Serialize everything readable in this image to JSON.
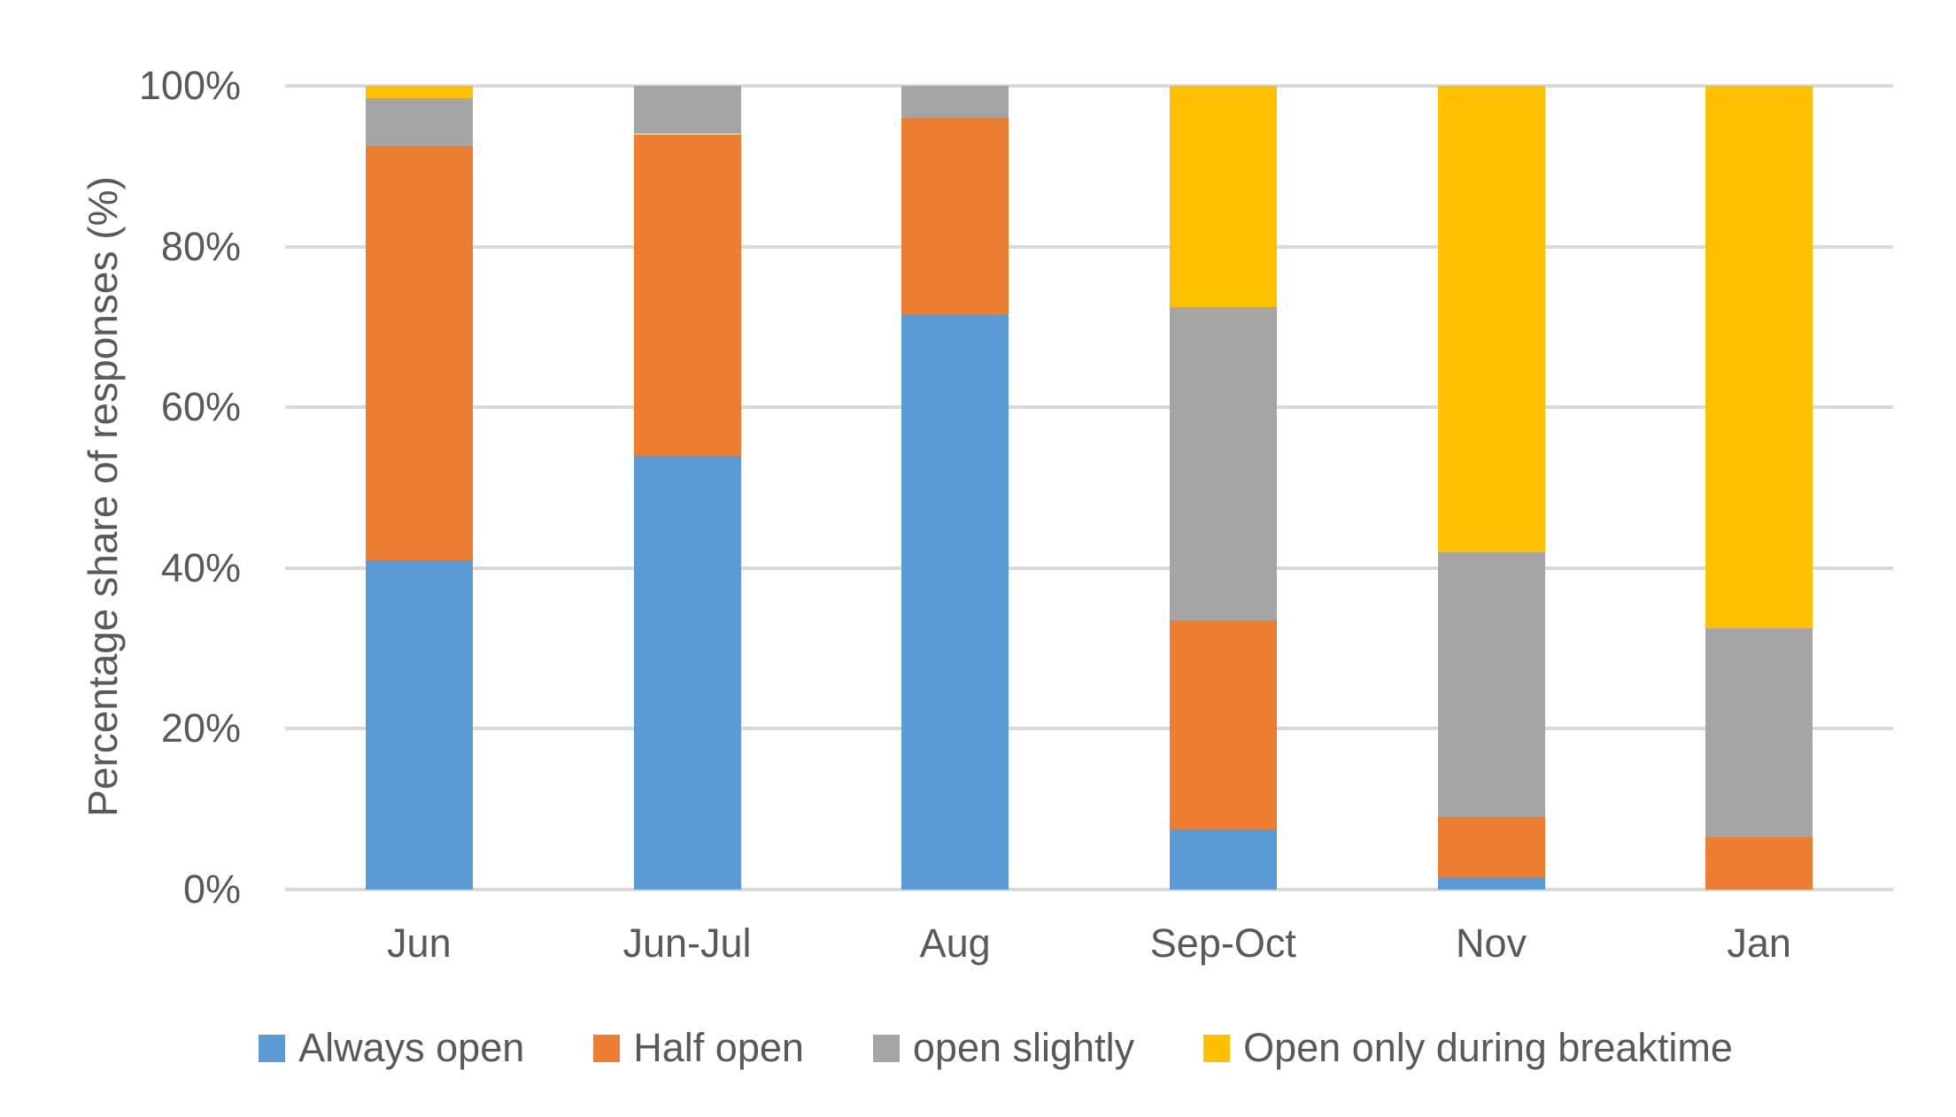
{
  "chart_data": {
    "type": "bar",
    "variant": "stacked-100-percent-vertical",
    "title": "",
    "xlabel": "",
    "ylabel": "Percentage share of responses (%)",
    "categories": [
      "Jun",
      "Jun-Jul",
      "Aug",
      "Sep-Oct",
      "Nov",
      "Jan"
    ],
    "series": [
      {
        "name": "Always open",
        "color": "#5B9BD5",
        "values": [
          41,
          54,
          71.5,
          7.5,
          1.5,
          0
        ]
      },
      {
        "name": "Half open",
        "color": "#ED7D31",
        "values": [
          51.5,
          40,
          24.5,
          26,
          7.5,
          6.5
        ]
      },
      {
        "name": "open slightly",
        "color": "#A5A5A5",
        "values": [
          6,
          6,
          4,
          39,
          33,
          26
        ]
      },
      {
        "name": "Open only during breaktime",
        "color": "#FFC000",
        "values": [
          1.5,
          0,
          0,
          27.5,
          58,
          67.5
        ]
      }
    ],
    "ylim": [
      0,
      100
    ],
    "yticks": [
      {
        "value": 0,
        "label": "0%"
      },
      {
        "value": 20,
        "label": "20%"
      },
      {
        "value": 40,
        "label": "40%"
      },
      {
        "value": 60,
        "label": "60%"
      },
      {
        "value": 80,
        "label": "80%"
      },
      {
        "value": 100,
        "label": "100%"
      }
    ],
    "grid": "horizontal",
    "gridline_color": "#D9D9D9",
    "axis_text_color": "#595959",
    "background_color": "#FFFFFF",
    "legend_position": "bottom",
    "legend_labels": [
      "Always open",
      "Half open",
      "open slightly",
      "Open only during breaktime"
    ]
  }
}
